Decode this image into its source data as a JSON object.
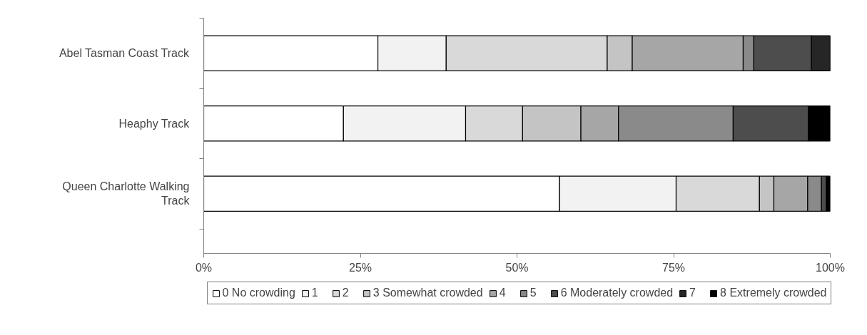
{
  "chart_data": {
    "type": "bar",
    "orientation": "horizontal",
    "stacked": true,
    "categories": [
      "Abel Tasman Coast Track",
      "Heaphy Track",
      "Queen Charlotte Walking Track"
    ],
    "series": [
      {
        "name": "0 No crowding",
        "color": "#ffffff",
        "values": [
          27.8,
          22.3,
          56.8
        ]
      },
      {
        "name": "1",
        "color": "#f2f2f2",
        "values": [
          10.9,
          19.5,
          18.6
        ]
      },
      {
        "name": "2",
        "color": "#d9d9d9",
        "values": [
          25.7,
          9.1,
          13.3
        ]
      },
      {
        "name": "3 Somewhat crowded",
        "color": "#c4c4c4",
        "values": [
          4.0,
          9.3,
          2.3
        ]
      },
      {
        "name": "4",
        "color": "#a6a6a6",
        "values": [
          17.7,
          6.0,
          5.4
        ]
      },
      {
        "name": "5",
        "color": "#8a8a8a",
        "values": [
          1.7,
          18.3,
          2.2
        ]
      },
      {
        "name": "6 Moderately crowded",
        "color": "#4d4d4d",
        "values": [
          9.2,
          12.0,
          0.8
        ]
      },
      {
        "name": "7",
        "color": "#262626",
        "values": [
          3.0,
          0,
          0
        ]
      },
      {
        "name": "8 Extremely crowded",
        "color": "#000000",
        "values": [
          0,
          3.5,
          0.6
        ]
      }
    ],
    "xlim": [
      0,
      100
    ],
    "xticks": [
      {
        "value": 0,
        "label": "0%"
      },
      {
        "value": 25,
        "label": "25%"
      },
      {
        "value": 50,
        "label": "50%"
      },
      {
        "value": 75,
        "label": "75%"
      },
      {
        "value": 100,
        "label": "100%"
      }
    ],
    "grid": false,
    "legend": "bottom"
  }
}
